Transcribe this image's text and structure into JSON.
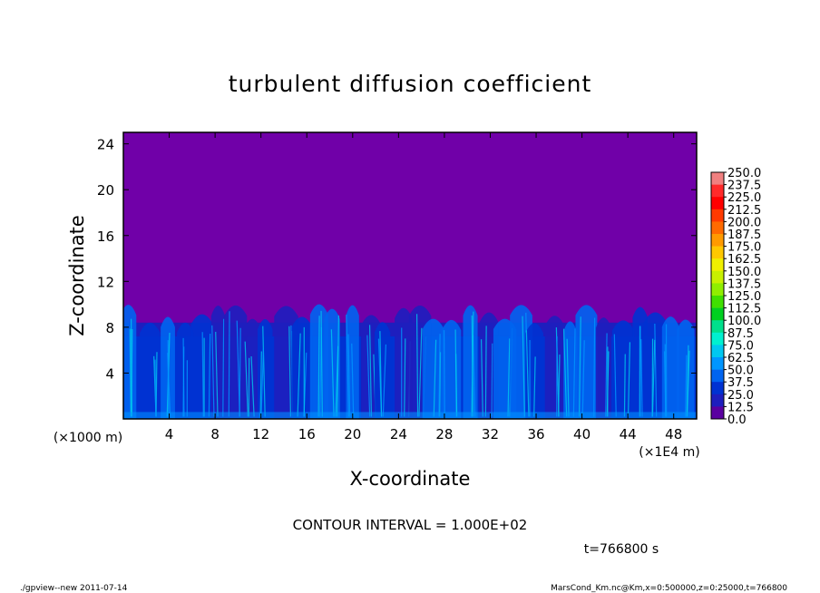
{
  "chart_data": {
    "type": "heatmap",
    "title": "turbulent diffusion coefficient",
    "xlabel": "X-coordinate",
    "ylabel": "Z-coordinate",
    "x_scale_note": "(×1E4 m)",
    "y_scale_note": "(×1000 m)",
    "xlim": [
      0,
      50
    ],
    "ylim": [
      0,
      25
    ],
    "x_ticks": [
      "4",
      "8",
      "12",
      "16",
      "20",
      "24",
      "28",
      "32",
      "36",
      "40",
      "44",
      "48"
    ],
    "x_tick_values": [
      4,
      8,
      12,
      16,
      20,
      24,
      28,
      32,
      36,
      40,
      44,
      48
    ],
    "y_ticks": [
      "4",
      "8",
      "12",
      "16",
      "20",
      "24"
    ],
    "y_tick_values": [
      4,
      8,
      12,
      16,
      20,
      24
    ],
    "colorbar": {
      "levels": [
        "250.0",
        "237.5",
        "225.0",
        "212.5",
        "200.0",
        "187.5",
        "175.0",
        "162.5",
        "150.0",
        "137.5",
        "125.0",
        "112.5",
        "100.0",
        "87.5",
        "75.0",
        "62.5",
        "50.0",
        "37.5",
        "25.0",
        "12.5",
        "0.0"
      ],
      "colors": [
        "#f08080",
        "#ff2a2a",
        "#ff0000",
        "#ff3a00",
        "#ff6a00",
        "#ff9a00",
        "#ffc800",
        "#f0f000",
        "#c8f000",
        "#90ee00",
        "#40e000",
        "#00d020",
        "#00e08c",
        "#00f0d0",
        "#00c8f0",
        "#0096ff",
        "#0064f0",
        "#0032d2",
        "#1e1ebe",
        "#5a00a0"
      ]
    },
    "background_value_color": "#7000a8",
    "contour_interval": "CONTOUR INTERVAL = 1.000E+02",
    "time_label": "t=766800 s"
  },
  "footer": {
    "left": "./gpview--new   2011-07-14",
    "right": "MarsCond_Km.nc@Km,x=0:500000,z=0:25000,t=766800"
  }
}
